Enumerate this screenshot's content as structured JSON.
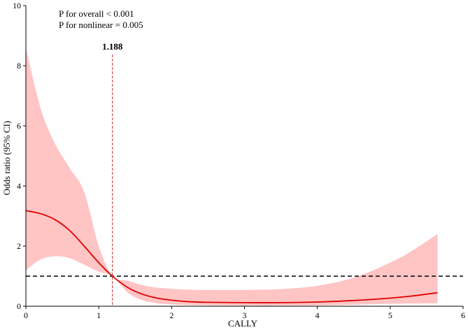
{
  "chart_data": {
    "type": "line",
    "xlabel": "CALLY",
    "ylabel": "Odds ratio (95% CI)",
    "xlim": [
      0,
      6
    ],
    "ylim": [
      0,
      10
    ],
    "x_ticks": [
      "0",
      "1",
      "2",
      "3",
      "4",
      "5",
      "6"
    ],
    "y_ticks": [
      "0",
      "2",
      "4",
      "6",
      "8",
      "10"
    ],
    "grid": false,
    "annotations": [
      "P for overall < 0.001",
      "P for nonlinear = 0.005"
    ],
    "cutoff": {
      "x": 1.188,
      "label": "1.188"
    },
    "reference_line_y": 1,
    "colors": {
      "curve": "#dd0000",
      "band": "#ffc4c4",
      "cutoff": "#cc2222",
      "reference": "#000000"
    },
    "series": [
      {
        "x": [
          0,
          0.2,
          0.4,
          0.6,
          0.8,
          1.0,
          1.188,
          1.4,
          1.6,
          1.8,
          2.0,
          2.25,
          2.5,
          3.0,
          3.5,
          4.0,
          4.5,
          5.0,
          5.3,
          5.65
        ],
        "y": [
          3.18,
          3.08,
          2.88,
          2.52,
          2.0,
          1.45,
          1.0,
          0.62,
          0.4,
          0.27,
          0.2,
          0.15,
          0.13,
          0.12,
          0.12,
          0.14,
          0.19,
          0.27,
          0.34,
          0.45
        ],
        "lower": [
          1.2,
          1.55,
          1.66,
          1.6,
          1.38,
          1.15,
          1.0,
          0.45,
          0.2,
          0.1,
          0.06,
          0.04,
          0.03,
          0.02,
          0.02,
          0.03,
          0.05,
          0.08,
          0.09,
          0.1
        ],
        "upper": [
          8.6,
          6.6,
          5.4,
          4.6,
          3.8,
          2.0,
          1.0,
          0.85,
          0.7,
          0.62,
          0.58,
          0.55,
          0.54,
          0.54,
          0.57,
          0.68,
          0.95,
          1.45,
          1.85,
          2.4
        ]
      }
    ]
  }
}
